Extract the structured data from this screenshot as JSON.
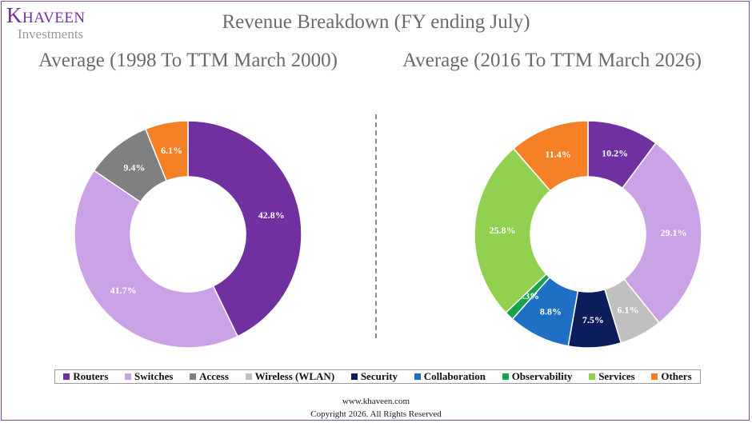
{
  "logo": {
    "name": "Khaveen",
    "sub": "Investments"
  },
  "title": "Revenue Breakdown (FY ending July)",
  "footer": {
    "url": "www.khaveen.com",
    "copyright": "Copyright 2026. All Rights Reserved"
  },
  "legend": [
    {
      "label": "Routers",
      "color": "#7030a0"
    },
    {
      "label": "Switches",
      "color": "#c9a3e6"
    },
    {
      "label": "Access",
      "color": "#808080"
    },
    {
      "label": "Wireless (WLAN)",
      "color": "#c0c0c0"
    },
    {
      "label": "Security",
      "color": "#0b1e5b"
    },
    {
      "label": "Collaboration",
      "color": "#1f6fc4"
    },
    {
      "label": "Observability",
      "color": "#17a34a"
    },
    {
      "label": "Services",
      "color": "#92d050"
    },
    {
      "label": "Others",
      "color": "#f58025"
    }
  ],
  "chart_data": [
    {
      "type": "pie",
      "subtitle": "Average (1998 To TTM March 2000)",
      "slices": [
        {
          "category": "Routers",
          "value": 42.8,
          "label": "42.8%"
        },
        {
          "category": "Switches",
          "value": 41.7,
          "label": "41.7%"
        },
        {
          "category": "Access",
          "value": 9.4,
          "label": "9.4%"
        },
        {
          "category": "Others",
          "value": 6.1,
          "label": "6.1%"
        }
      ]
    },
    {
      "type": "pie",
      "subtitle": "Average (2016 To TTM March 2026)",
      "slices": [
        {
          "category": "Routers",
          "value": 10.2,
          "label": "10.2%"
        },
        {
          "category": "Switches",
          "value": 29.1,
          "label": "29.1%"
        },
        {
          "category": "Wireless (WLAN)",
          "value": 6.1,
          "label": "6.1%"
        },
        {
          "category": "Security",
          "value": 7.5,
          "label": "7.5%"
        },
        {
          "category": "Collaboration",
          "value": 8.8,
          "label": "8.8%"
        },
        {
          "category": "Observability",
          "value": 1.3,
          "label": "1.3%"
        },
        {
          "category": "Services",
          "value": 25.8,
          "label": "25.8%"
        },
        {
          "category": "Others",
          "value": 11.4,
          "label": "11.4%"
        }
      ]
    }
  ]
}
